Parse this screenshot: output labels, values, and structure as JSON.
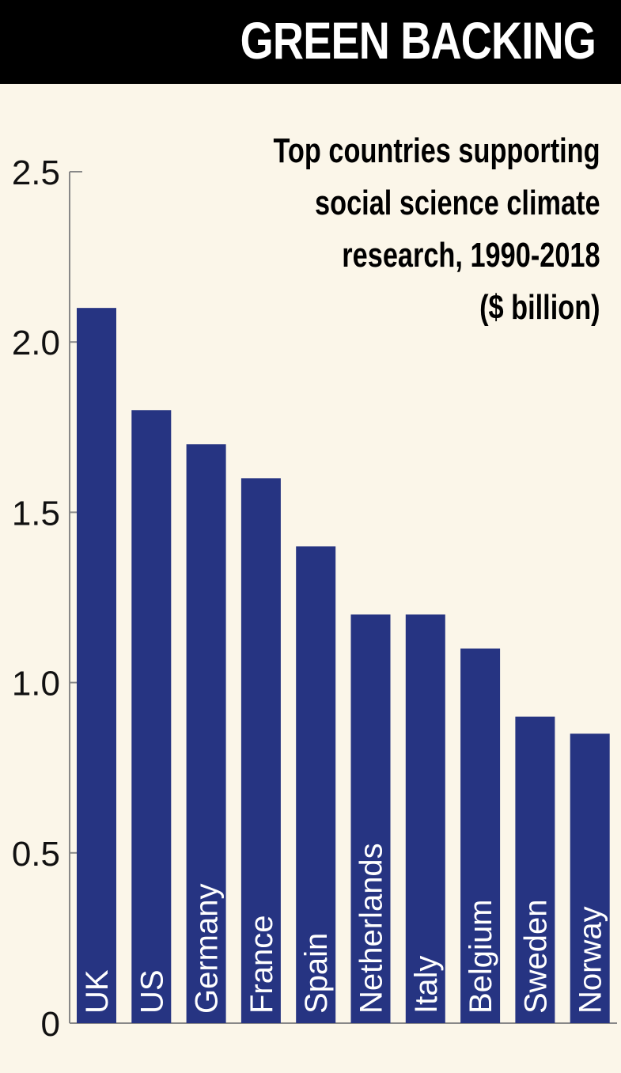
{
  "header": {
    "title": "GREEN BACKING"
  },
  "subtitle_lines": [
    "Top countries supporting",
    "social science climate",
    "research, 1990-2018",
    "($ billion)"
  ],
  "colors": {
    "bar": "#263482",
    "background": "#fbf6e9",
    "header": "#000000"
  },
  "chart_data": {
    "type": "bar",
    "title": "Top countries supporting social science climate research, 1990-2018 ($ billion)",
    "xlabel": "",
    "ylabel": "",
    "categories": [
      "UK",
      "US",
      "Germany",
      "France",
      "Spain",
      "Netherlands",
      "Italy",
      "Belgium",
      "Sweden",
      "Norway"
    ],
    "values": [
      2.1,
      1.8,
      1.7,
      1.6,
      1.4,
      1.2,
      1.2,
      1.1,
      0.9,
      0.85
    ],
    "ylim": [
      0,
      2.5
    ],
    "yticks": [
      {
        "value": 0,
        "label": "0"
      },
      {
        "value": 0.5,
        "label": "0.5"
      },
      {
        "value": 1.0,
        "label": "1.0"
      },
      {
        "value": 1.5,
        "label": "1.5"
      },
      {
        "value": 2.0,
        "label": "2.0"
      },
      {
        "value": 2.5,
        "label": "2.5"
      }
    ]
  }
}
